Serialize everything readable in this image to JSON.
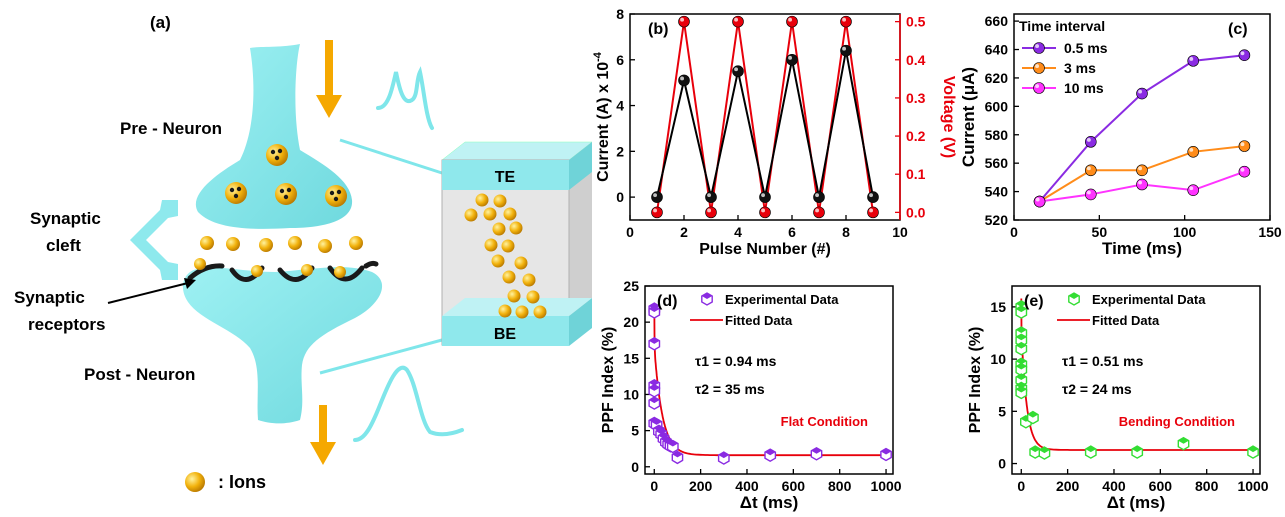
{
  "panel_a": {
    "label": "(a)",
    "pre_neuron": "Pre - Neuron",
    "post_neuron": "Post - Neuron",
    "cleft_line1": "Synaptic",
    "cleft_line2": "cleft",
    "receptor_line1": "Synaptic",
    "receptor_line2": "receptors",
    "te": "TE",
    "be": "BE",
    "ions_legend": ": Ions",
    "colors": {
      "neuron": "#7fe6ea",
      "ion": "#f2b20c",
      "arrow": "#f5a800",
      "receptor": "#1a1a1a"
    }
  },
  "chart_data": [
    {
      "id": "b",
      "type": "line",
      "panel_label": "(b)",
      "xlabel": "Pulse Number (#)",
      "ylabel": "Current (A) x 10",
      "ylabel_exp": "-4",
      "y2label": "Voltage (V)",
      "xlim": [
        0,
        10
      ],
      "ylim": [
        -1,
        8
      ],
      "y2lim": [
        -0.02,
        0.52
      ],
      "xticks": [
        0,
        2,
        4,
        6,
        8,
        10
      ],
      "yticks": [
        0,
        2,
        4,
        6,
        8
      ],
      "y2ticks": [
        0.0,
        0.1,
        0.2,
        0.3,
        0.4,
        0.5
      ],
      "series": [
        {
          "axis": "left",
          "color": "#000000",
          "x": [
            1,
            2,
            3,
            4,
            5,
            6,
            7,
            8,
            9
          ],
          "y": [
            0,
            5.1,
            0,
            5.5,
            0,
            6.0,
            0,
            6.4,
            0
          ]
        },
        {
          "axis": "right",
          "color": "#e8000b",
          "x": [
            1,
            2,
            3,
            4,
            5,
            6,
            7,
            8,
            9
          ],
          "y": [
            0,
            0.5,
            0,
            0.5,
            0,
            0.5,
            0,
            0.5,
            0
          ]
        }
      ]
    },
    {
      "id": "c",
      "type": "line",
      "panel_label": "(c)",
      "xlabel": "Time (ms)",
      "ylabel": "Current (μA)",
      "xlim": [
        0,
        150
      ],
      "ylim": [
        520,
        665
      ],
      "xticks": [
        0,
        50,
        100,
        150
      ],
      "yticks": [
        520,
        540,
        560,
        580,
        600,
        620,
        640,
        660
      ],
      "legend_title": "Time interval",
      "legend_position": "top-left",
      "series": [
        {
          "name": "0.5 ms",
          "color": "#8a2be2",
          "x": [
            15,
            45,
            75,
            105,
            135
          ],
          "y": [
            533,
            575,
            609,
            632,
            636
          ]
        },
        {
          "name": "3 ms",
          "color": "#ff8c1a",
          "x": [
            15,
            45,
            75,
            105,
            135
          ],
          "y": [
            533,
            555,
            555,
            568,
            572
          ]
        },
        {
          "name": "10 ms",
          "color": "#ff33ff",
          "x": [
            15,
            45,
            75,
            105,
            135
          ],
          "y": [
            533,
            538,
            545,
            541,
            554
          ]
        }
      ]
    },
    {
      "id": "d",
      "type": "scatter",
      "panel_label": "(d)",
      "xlabel": "Δt (ms)",
      "ylabel": "PPF Index (%)",
      "xlim": [
        -40,
        1030
      ],
      "ylim": [
        -1,
        25
      ],
      "xticks": [
        0,
        200,
        400,
        600,
        800,
        1000
      ],
      "yticks": [
        0,
        5,
        10,
        15,
        20,
        25
      ],
      "marker_color": "#8a2be2",
      "fit_color": "#e8000b",
      "legend": [
        "Experimental Data",
        "Fitted Data"
      ],
      "annotations": {
        "tau1": "τ1 = 0.94 ms",
        "tau2": "τ2 = 35 ms",
        "condition": "Flat Condition"
      },
      "points": {
        "x": [
          0,
          0,
          0,
          0,
          0,
          0,
          0,
          10,
          20,
          30,
          40,
          50,
          60,
          70,
          80,
          100,
          300,
          500,
          700,
          1000
        ],
        "y": [
          21.8,
          21.4,
          17,
          11.2,
          10.5,
          8.8,
          6,
          5.8,
          4.9,
          4.5,
          3.9,
          3.4,
          3.1,
          2.9,
          2.8,
          1.3,
          1.2,
          1.6,
          1.8,
          1.7
        ]
      },
      "fit": {
        "y0": 1.6,
        "a1": 6,
        "t1": 0.94,
        "a2": 15,
        "t2": 35
      }
    },
    {
      "id": "e",
      "type": "scatter",
      "panel_label": "(e)",
      "xlabel": "Δt (ms)",
      "ylabel": "PPF Index (%)",
      "xlim": [
        -40,
        1030
      ],
      "ylim": [
        -1,
        17
      ],
      "xticks": [
        0,
        200,
        400,
        600,
        800,
        1000
      ],
      "yticks": [
        0,
        5,
        10,
        15
      ],
      "marker_color": "#33dd33",
      "fit_color": "#e8000b",
      "legend": [
        "Experimental Data",
        "Fitted Data"
      ],
      "annotations": {
        "tau1": "τ1 = 0.51 ms",
        "tau2": "τ2 = 24 ms",
        "condition": "Bending Condition"
      },
      "points": {
        "x": [
          0,
          0,
          0,
          0,
          0,
          0,
          0,
          0,
          0,
          0,
          20,
          50,
          60,
          100,
          300,
          500,
          700,
          1000
        ],
        "y": [
          15,
          14.5,
          12.5,
          11.8,
          11,
          9.5,
          9,
          8,
          7.2,
          6.8,
          4,
          4.4,
          1.1,
          1.0,
          1.1,
          1.1,
          1.9,
          1.1
        ]
      },
      "fit": {
        "y0": 1.3,
        "a1": 3,
        "t1": 0.51,
        "a2": 11.5,
        "t2": 24
      }
    }
  ]
}
